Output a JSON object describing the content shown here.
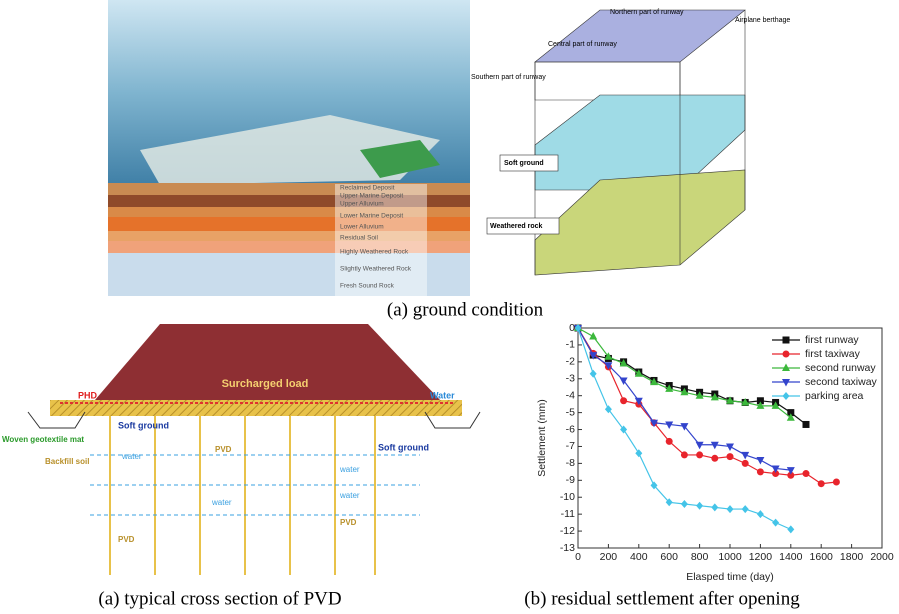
{
  "ground_figure": {
    "caption": "(a) ground condition",
    "strata": [
      "Reclaimed Deposit",
      "Upper Marine Deposit",
      "Upper Alluvium",
      "Lower Marine Deposit",
      "Lower Alluvium",
      "Residual Soil",
      "Highly Weathered Rock",
      "Slightly Weathered Rock",
      "Fresh Sound Rock"
    ],
    "diagram_labels": [
      "Northern part of runway",
      "Airplane berthage",
      "Central part of runway",
      "Southern part of runway",
      "Soft ground",
      "Weathered rock"
    ]
  },
  "pvd_figure": {
    "caption": "(a) typical cross section of PVD",
    "labels": [
      "PHD",
      "Surcharged load",
      "Water",
      "Soft ground",
      "Woven geotextile mat",
      "Backfill soil",
      "Soft ground",
      "PVD",
      "water",
      "water",
      "water",
      "water",
      "PVD",
      "PVD"
    ]
  },
  "chart_data": {
    "type": "line",
    "caption": "(b) residual settlement after opening",
    "xlabel": "Elasped time (day)",
    "ylabel": "Settlement (mm)",
    "xlim": [
      0,
      2000
    ],
    "xticks": [
      0,
      200,
      400,
      600,
      800,
      1000,
      1200,
      1400,
      1600,
      1800,
      2000
    ],
    "ylim": [
      -13,
      0
    ],
    "yticks": [
      0,
      -1,
      -2,
      -3,
      -4,
      -5,
      -6,
      -7,
      -8,
      -9,
      -10,
      -11,
      -12,
      -13
    ],
    "legend": "upper right",
    "series": [
      {
        "name": "first runway",
        "color": "#111111",
        "marker": "square",
        "x": [
          0,
          100,
          200,
          300,
          400,
          500,
          600,
          700,
          800,
          900,
          1000,
          1100,
          1200,
          1300,
          1400,
          1500
        ],
        "values": [
          0,
          -1.6,
          -1.8,
          -2.0,
          -2.6,
          -3.1,
          -3.4,
          -3.6,
          -3.8,
          -3.9,
          -4.3,
          -4.4,
          -4.3,
          -4.4,
          -5.0,
          -5.7
        ]
      },
      {
        "name": "first taxiway",
        "color": "#e8242c",
        "marker": "circle",
        "x": [
          0,
          100,
          200,
          300,
          400,
          500,
          600,
          700,
          800,
          900,
          1000,
          1100,
          1200,
          1300,
          1400,
          1500,
          1600,
          1700
        ],
        "values": [
          0,
          -1.5,
          -2.3,
          -4.3,
          -4.5,
          -5.6,
          -6.7,
          -7.5,
          -7.5,
          -7.7,
          -7.6,
          -8.0,
          -8.5,
          -8.6,
          -8.7,
          -8.6,
          -9.2,
          -9.1
        ]
      },
      {
        "name": "second runway",
        "color": "#3cb83c",
        "marker": "triangle-up",
        "x": [
          0,
          100,
          200,
          300,
          400,
          500,
          600,
          700,
          800,
          900,
          1000,
          1100,
          1200,
          1300,
          1400
        ],
        "values": [
          0,
          -0.5,
          -1.7,
          -2.1,
          -2.7,
          -3.2,
          -3.6,
          -3.8,
          -4.0,
          -4.1,
          -4.3,
          -4.4,
          -4.6,
          -4.6,
          -5.3
        ]
      },
      {
        "name": "second taxiway",
        "color": "#3344cc",
        "marker": "triangle-down",
        "x": [
          0,
          100,
          200,
          300,
          400,
          500,
          600,
          700,
          800,
          900,
          1000,
          1100,
          1200,
          1300,
          1400
        ],
        "values": [
          0,
          -1.6,
          -2.2,
          -3.1,
          -4.3,
          -5.6,
          -5.7,
          -5.8,
          -6.9,
          -6.9,
          -7.0,
          -7.5,
          -7.8,
          -8.3,
          -8.4
        ]
      },
      {
        "name": "parking area",
        "color": "#44c4e8",
        "marker": "diamond",
        "x": [
          0,
          100,
          200,
          300,
          400,
          500,
          600,
          700,
          800,
          900,
          1000,
          1100,
          1200,
          1300,
          1400
        ],
        "values": [
          0,
          -2.7,
          -4.8,
          -6.0,
          -7.4,
          -9.3,
          -10.3,
          -10.4,
          -10.5,
          -10.6,
          -10.7,
          -10.7,
          -11.0,
          -11.5,
          -11.9
        ]
      }
    ]
  }
}
